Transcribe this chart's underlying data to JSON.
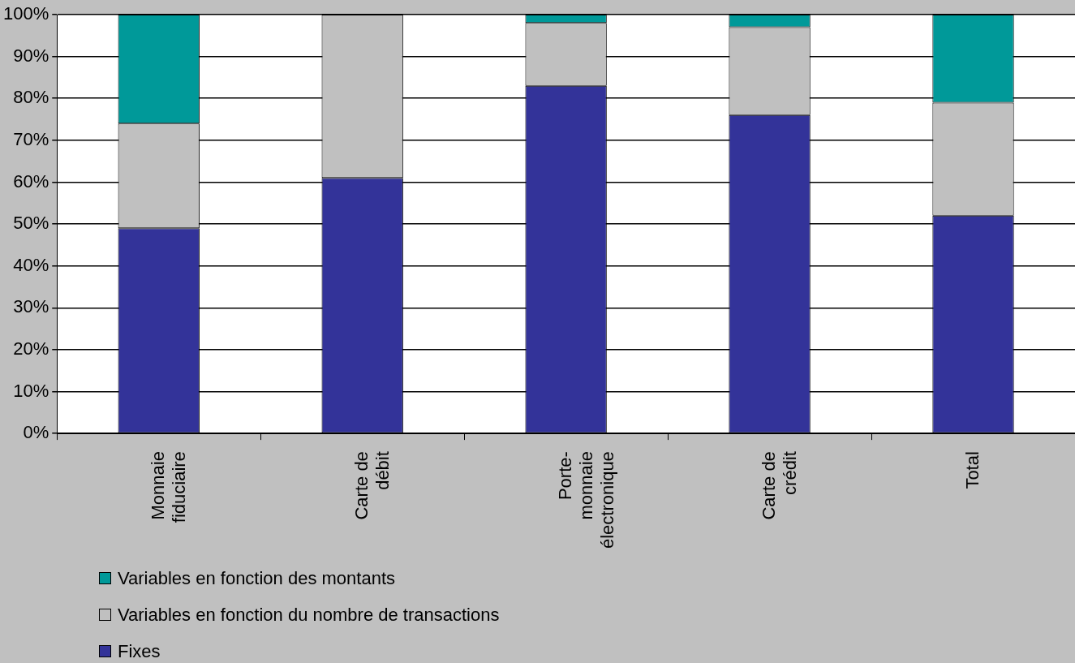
{
  "chart_data": {
    "type": "bar",
    "stacked": true,
    "categories": [
      "Monnaie fiduciaire",
      "Carte de débit",
      "Porte-monnaie électronique",
      "Carte de crédit",
      "Total"
    ],
    "series": [
      {
        "name": "Fixes",
        "color": "#333399",
        "values": [
          49,
          61,
          83,
          76,
          52
        ]
      },
      {
        "name": "Variables en fonction du nombre de transactions",
        "color": "#c0c0c0",
        "values": [
          25,
          39,
          15,
          21,
          27
        ]
      },
      {
        "name": "Variables en fonction des montants",
        "color": "#009999",
        "values": [
          26,
          0,
          2,
          3,
          21
        ]
      }
    ],
    "ylim": [
      0,
      100
    ],
    "yticks": [
      {
        "value": 0,
        "label": "0%"
      },
      {
        "value": 10,
        "label": "10%"
      },
      {
        "value": 20,
        "label": "20%"
      },
      {
        "value": 30,
        "label": "30%"
      },
      {
        "value": 40,
        "label": "40%"
      },
      {
        "value": 50,
        "label": "50%"
      },
      {
        "value": 60,
        "label": "60%"
      },
      {
        "value": 70,
        "label": "70%"
      },
      {
        "value": 80,
        "label": "80%"
      },
      {
        "value": 90,
        "label": "90%"
      },
      {
        "value": 100,
        "label": "100%"
      }
    ],
    "grid": "y",
    "legend": "bottom"
  }
}
